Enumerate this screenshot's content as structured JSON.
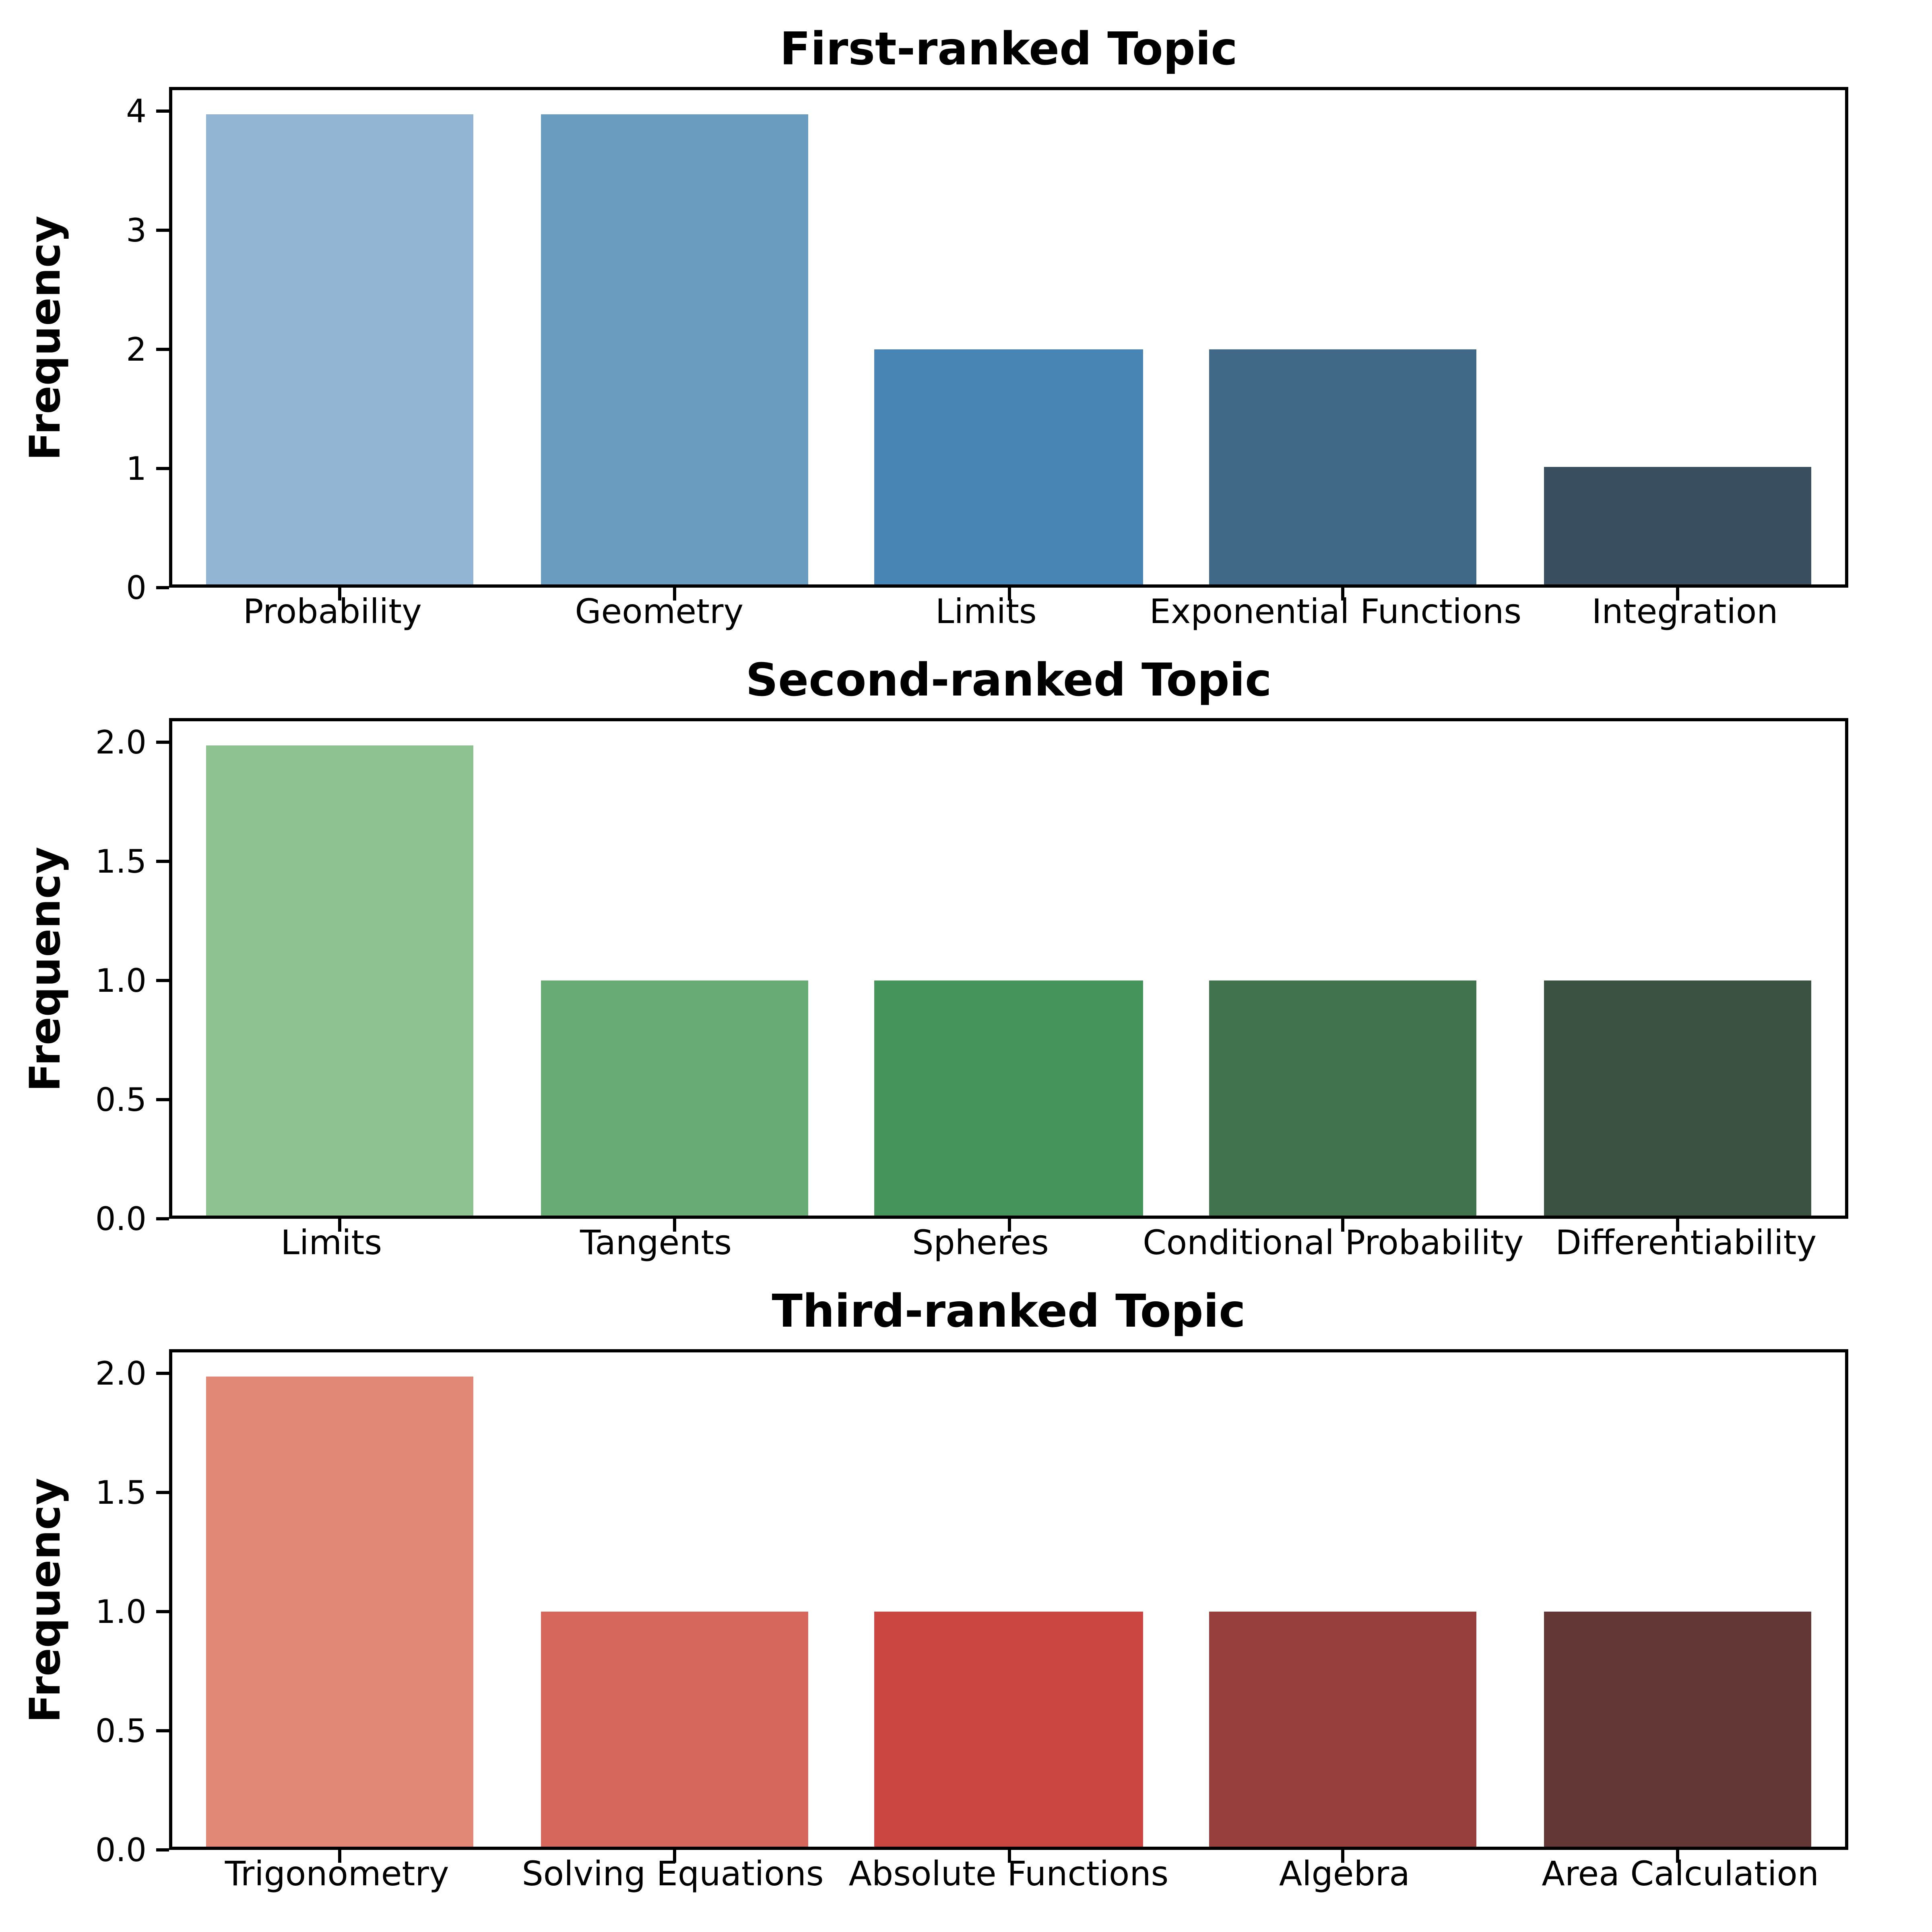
{
  "figure": {
    "background": "#ffffff",
    "num_panels": 3
  },
  "chart_data": [
    {
      "type": "bar",
      "title": "First-ranked Topic",
      "xlabel": "",
      "ylabel": "Frequency",
      "categories": [
        "Probability",
        "Geometry",
        "Limits",
        "Exponential Functions",
        "Integration"
      ],
      "values": [
        4,
        4,
        2,
        2,
        1
      ],
      "bar_colors": [
        "#92b5d3",
        "#6a9cc0",
        "#4884b4",
        "#3f6986",
        "#394e5e"
      ],
      "yticks": [
        0,
        1,
        2,
        3,
        4
      ],
      "ytick_labels": [
        "0",
        "1",
        "2",
        "3",
        "4"
      ],
      "ylim": [
        0,
        4.2
      ],
      "grid": false,
      "legend": null
    },
    {
      "type": "bar",
      "title": "Second-ranked Topic",
      "xlabel": "",
      "ylabel": "Frequency",
      "categories": [
        "Limits",
        "Tangents",
        "Spheres",
        "Conditional Probability",
        "Differentiability"
      ],
      "values": [
        2,
        1,
        1,
        1,
        1
      ],
      "bar_colors": [
        "#8ec291",
        "#69ab75",
        "#45945b",
        "#41734e",
        "#3b5243"
      ],
      "yticks": [
        0,
        0.5,
        1,
        1.5,
        2
      ],
      "ytick_labels": [
        "0.0",
        "0.5",
        "1.0",
        "1.5",
        "2.0"
      ],
      "ylim": [
        0,
        2.1
      ],
      "grid": false,
      "legend": null
    },
    {
      "type": "bar",
      "title": "Third-ranked Topic",
      "xlabel": "",
      "ylabel": "Frequency",
      "categories": [
        "Trigonometry",
        "Solving Equations",
        "Absolute Functions",
        "Algebra",
        "Area Calculation"
      ],
      "values": [
        2,
        1,
        1,
        1,
        1
      ],
      "bar_colors": [
        "#e18976",
        "#d5675c",
        "#cb4541",
        "#963f3c",
        "#633735"
      ],
      "yticks": [
        0,
        0.5,
        1,
        1.5,
        2
      ],
      "ytick_labels": [
        "0.0",
        "0.5",
        "1.0",
        "1.5",
        "2.0"
      ],
      "ylim": [
        0,
        2.1
      ],
      "grid": false,
      "legend": null
    }
  ]
}
